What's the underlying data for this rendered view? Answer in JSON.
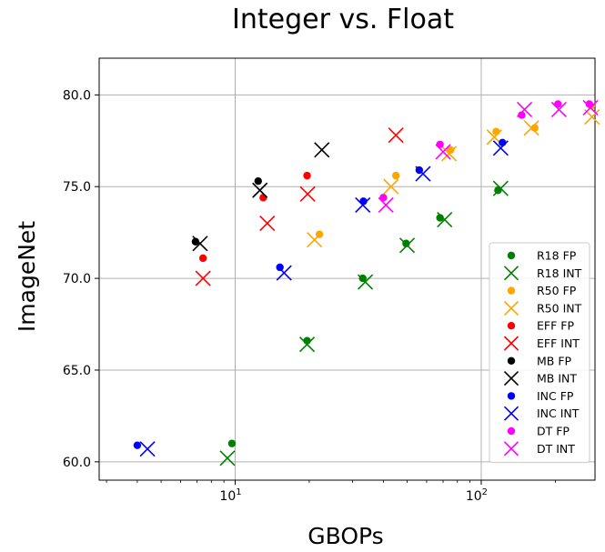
{
  "chart_data": {
    "type": "scatter",
    "title": "Integer vs. Float",
    "xlabel": "GBOPs",
    "ylabel": "ImageNet",
    "xscale": "log",
    "xlim": [
      2.8,
      290
    ],
    "ylim": [
      59.0,
      82.0
    ],
    "grid": true,
    "legend_position": "lower-right",
    "x_ticks": [
      {
        "value": 10,
        "base": "10",
        "exp": "1"
      },
      {
        "value": 100,
        "base": "10",
        "exp": "2"
      }
    ],
    "y_ticks": [
      {
        "value": 60,
        "label": "60.0"
      },
      {
        "value": 65,
        "label": "65.0"
      },
      {
        "value": 70,
        "label": "70.0"
      },
      {
        "value": 75,
        "label": "75.0"
      },
      {
        "value": 80,
        "label": "80.0"
      }
    ],
    "series": [
      {
        "name": "R18 FP",
        "marker": "dot",
        "color": "#008000",
        "points": [
          [
            9.7,
            61.0
          ],
          [
            19.6,
            66.6
          ],
          [
            33.0,
            70.0
          ],
          [
            49.5,
            71.9
          ],
          [
            68.0,
            73.3
          ],
          [
            117.0,
            74.8
          ]
        ]
      },
      {
        "name": "R18 INT",
        "marker": "x",
        "color": "#008000",
        "points": [
          [
            9.3,
            60.2
          ],
          [
            19.6,
            66.4
          ],
          [
            33.8,
            69.8
          ],
          [
            50.0,
            71.8
          ],
          [
            71.0,
            73.2
          ],
          [
            120.0,
            74.9
          ]
        ]
      },
      {
        "name": "R50 FP",
        "marker": "dot",
        "color": "#ffa500",
        "points": [
          [
            22.0,
            72.4
          ],
          [
            45.0,
            75.6
          ],
          [
            75.0,
            77.0
          ],
          [
            115.0,
            78.0
          ],
          [
            165.0,
            78.2
          ],
          [
            280.0,
            79.4
          ]
        ]
      },
      {
        "name": "R50 INT",
        "marker": "x",
        "color": "#ffa500",
        "points": [
          [
            21.0,
            72.1
          ],
          [
            43.0,
            75.0
          ],
          [
            74.0,
            76.8
          ],
          [
            113.0,
            77.7
          ],
          [
            160.0,
            78.2
          ],
          [
            282.0,
            78.8
          ]
        ]
      },
      {
        "name": "EFF FP",
        "marker": "dot",
        "color": "#ff0000",
        "points": [
          [
            7.4,
            71.1
          ],
          [
            13.0,
            74.4
          ],
          [
            19.6,
            75.6
          ]
        ]
      },
      {
        "name": "EFF INT",
        "marker": "x",
        "color": "#ff0000",
        "points": [
          [
            7.4,
            70.0
          ],
          [
            13.5,
            73.0
          ],
          [
            19.7,
            74.6
          ],
          [
            45.0,
            77.8
          ]
        ]
      },
      {
        "name": "MB FP",
        "marker": "dot",
        "color": "#000000",
        "points": [
          [
            6.9,
            72.0
          ],
          [
            12.4,
            75.3
          ]
        ]
      },
      {
        "name": "MB INT",
        "marker": "x",
        "color": "#000000",
        "points": [
          [
            7.2,
            71.9
          ],
          [
            12.6,
            74.8
          ],
          [
            22.5,
            77.0
          ]
        ]
      },
      {
        "name": "INC FP",
        "marker": "dot",
        "color": "#0000ff",
        "points": [
          [
            4.0,
            60.9
          ],
          [
            15.2,
            70.6
          ],
          [
            33.2,
            74.2
          ],
          [
            56.0,
            75.9
          ],
          [
            122.0,
            77.4
          ]
        ]
      },
      {
        "name": "INC INT",
        "marker": "x",
        "color": "#0000ff",
        "points": [
          [
            4.4,
            60.7
          ],
          [
            15.8,
            70.3
          ],
          [
            33.0,
            74.0
          ],
          [
            58.0,
            75.7
          ],
          [
            120.0,
            77.1
          ]
        ]
      },
      {
        "name": "DT FP",
        "marker": "dot",
        "color": "#ff00ff",
        "points": [
          [
            40.0,
            74.4
          ],
          [
            68.0,
            77.3
          ],
          [
            146.0,
            78.9
          ],
          [
            205.0,
            79.5
          ],
          [
            275.0,
            79.5
          ]
        ]
      },
      {
        "name": "DT INT",
        "marker": "x",
        "color": "#ff00ff",
        "points": [
          [
            41.0,
            74.0
          ],
          [
            70.0,
            76.9
          ],
          [
            150.0,
            79.2
          ],
          [
            207.0,
            79.2
          ],
          [
            278.0,
            79.3
          ]
        ]
      }
    ]
  }
}
